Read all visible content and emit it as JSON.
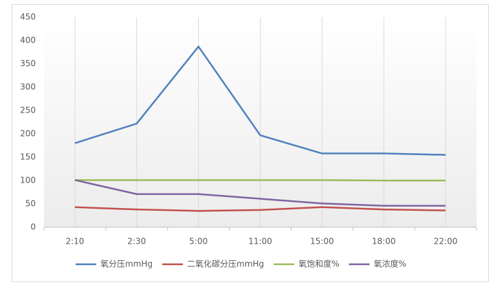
{
  "chart_data": {
    "type": "line",
    "categories": [
      "2:10",
      "2:30",
      "5:00",
      "11:00",
      "15:00",
      "18:00",
      "22:00"
    ],
    "series": [
      {
        "name": "氧分压mmHg",
        "color": "#4f81bd",
        "values": [
          180,
          222,
          387,
          197,
          158,
          158,
          155
        ]
      },
      {
        "name": "二氧化碳分压mmHg",
        "color": "#c0504d",
        "values": [
          43,
          38,
          35,
          37,
          43,
          38,
          36
        ]
      },
      {
        "name": "氧饱和度%",
        "color": "#9bbb59",
        "values": [
          101,
          101,
          101,
          101,
          101,
          100,
          100
        ]
      },
      {
        "name": "氧浓度%",
        "color": "#8064a2",
        "values": [
          101,
          71,
          71,
          61,
          51,
          46,
          46
        ]
      }
    ],
    "ylim": [
      0,
      450
    ],
    "yticks": [
      0,
      50,
      100,
      150,
      200,
      250,
      300,
      350,
      400,
      450
    ],
    "grid": true,
    "legend": "bottom"
  }
}
